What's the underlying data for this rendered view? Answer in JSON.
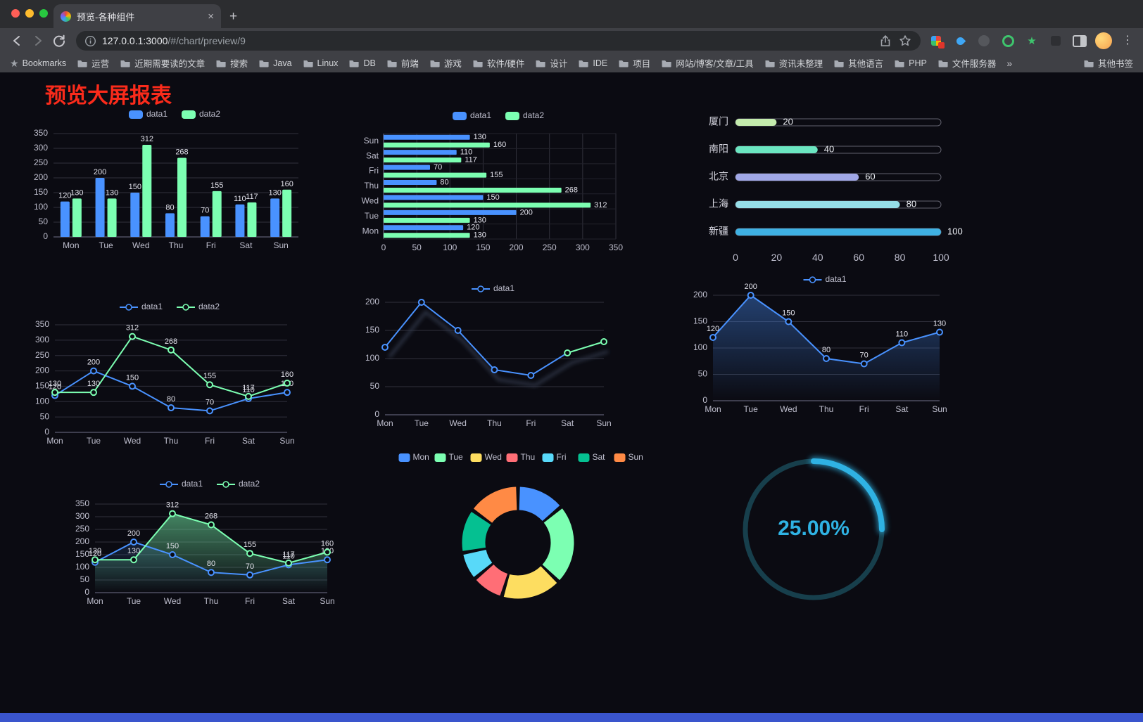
{
  "browser": {
    "tab_title": "预览-各种组件",
    "glyphs": {
      "close": "×",
      "plus": "+",
      "menu": "⋮",
      "overflow": "»",
      "bookmarks_star": "★",
      "ext_star": "★"
    },
    "url": {
      "host": "127.0.0.1:3000",
      "path": "/#/chart/preview/9"
    },
    "bookmarks_label": "Bookmarks",
    "bookmarks": [
      "运营",
      "近期需要读的文章",
      "搜索",
      "Java",
      "Linux",
      "DB",
      "前端",
      "游戏",
      "软件/硬件",
      "设计",
      "IDE",
      "项目",
      "网站/博客/文章/工具",
      "资讯未整理",
      "其他语言",
      "PHP",
      "文件服务器"
    ],
    "other_bookmarks": "其他书签"
  },
  "page": {
    "title": "预览大屏报表",
    "title_color": "#fb2b1b",
    "background": "#0b0b12",
    "bottom_bar_color": "#3a55cd"
  },
  "chart_data": [
    {
      "id": "grouped-bar",
      "type": "bar",
      "categories": [
        "Mon",
        "Tue",
        "Wed",
        "Thu",
        "Fri",
        "Sat",
        "Sun"
      ],
      "series": [
        {
          "name": "data1",
          "color": "#4992ff",
          "values": [
            120,
            200,
            150,
            80,
            70,
            110,
            130
          ]
        },
        {
          "name": "data2",
          "color": "#7cffb2",
          "values": [
            130,
            130,
            312,
            268,
            155,
            117,
            160
          ]
        }
      ],
      "ylim": [
        0,
        350
      ],
      "ytick_step": 50
    },
    {
      "id": "horizontal-bar",
      "type": "hbar",
      "categories": [
        "Mon",
        "Tue",
        "Wed",
        "Thu",
        "Fri",
        "Sat",
        "Sun"
      ],
      "series": [
        {
          "name": "data1",
          "color": "#4992ff",
          "values": [
            120,
            200,
            150,
            80,
            70,
            110,
            130
          ]
        },
        {
          "name": "data2",
          "color": "#7cffb2",
          "values": [
            130,
            130,
            312,
            268,
            155,
            117,
            160
          ]
        }
      ],
      "xlim": [
        0,
        350
      ],
      "xtick_step": 50
    },
    {
      "id": "city-progress",
      "type": "progress",
      "items": [
        {
          "label": "厦门",
          "value": 20,
          "color": "#c4ebad"
        },
        {
          "label": "南阳",
          "value": 40,
          "color": "#6be6c1"
        },
        {
          "label": "北京",
          "value": 60,
          "color": "#a0a7e6"
        },
        {
          "label": "上海",
          "value": 80,
          "color": "#96dee8"
        },
        {
          "label": "新疆",
          "value": 100,
          "color": "#3fb1e3"
        }
      ],
      "xlim": [
        0,
        100
      ],
      "xticks": [
        0,
        20,
        40,
        60,
        80,
        100
      ]
    },
    {
      "id": "line-two-series",
      "type": "line",
      "categories": [
        "Mon",
        "Tue",
        "Wed",
        "Thu",
        "Fri",
        "Sat",
        "Sun"
      ],
      "series": [
        {
          "name": "data1",
          "color": "#4992ff",
          "values": [
            120,
            200,
            150,
            80,
            70,
            110,
            130
          ]
        },
        {
          "name": "data2",
          "color": "#7cffb2",
          "values": [
            130,
            130,
            312,
            268,
            155,
            117,
            160
          ]
        }
      ],
      "ylim": [
        0,
        350
      ]
    },
    {
      "id": "line-single",
      "type": "line",
      "categories": [
        "Mon",
        "Tue",
        "Wed",
        "Thu",
        "Fri",
        "Sat",
        "Sun"
      ],
      "series": [
        {
          "name": "data1",
          "color": "#4992ff",
          "values": [
            120,
            200,
            150,
            80,
            70,
            110,
            130
          ]
        }
      ],
      "ylim": [
        0,
        200
      ],
      "tail_color": "#7cffb2"
    },
    {
      "id": "line-single-area",
      "type": "line",
      "categories": [
        "Mon",
        "Tue",
        "Wed",
        "Thu",
        "Fri",
        "Sat",
        "Sun"
      ],
      "series": [
        {
          "name": "data1",
          "color": "#4992ff",
          "values": [
            120,
            200,
            150,
            80,
            70,
            110,
            130
          ]
        }
      ],
      "ylim": [
        0,
        200
      ]
    },
    {
      "id": "line-two-area",
      "type": "line",
      "categories": [
        "Mon",
        "Tue",
        "Wed",
        "Thu",
        "Fri",
        "Sat",
        "Sun"
      ],
      "series": [
        {
          "name": "data1",
          "color": "#4992ff",
          "values": [
            120,
            200,
            150,
            80,
            70,
            110,
            130
          ]
        },
        {
          "name": "data2",
          "color": "#7cffb2",
          "values": [
            130,
            130,
            312,
            268,
            155,
            117,
            160
          ]
        }
      ],
      "ylim": [
        0,
        350
      ]
    },
    {
      "id": "donut",
      "type": "donut",
      "items": [
        {
          "label": "Mon",
          "value": 120,
          "color": "#4992ff"
        },
        {
          "label": "Tue",
          "value": 200,
          "color": "#7cffb2"
        },
        {
          "label": "Wed",
          "value": 150,
          "color": "#fddd60"
        },
        {
          "label": "Thu",
          "value": 80,
          "color": "#ff6e76"
        },
        {
          "label": "Fri",
          "value": 70,
          "color": "#58d9f9"
        },
        {
          "label": "Sat",
          "value": 110,
          "color": "#05c091"
        },
        {
          "label": "Sun",
          "value": 130,
          "color": "#ff8a45"
        }
      ]
    },
    {
      "id": "gauge",
      "type": "gauge",
      "value": 25,
      "display": "25.00%",
      "color": "#2fb2e3",
      "track_color": "#173f4c"
    }
  ]
}
